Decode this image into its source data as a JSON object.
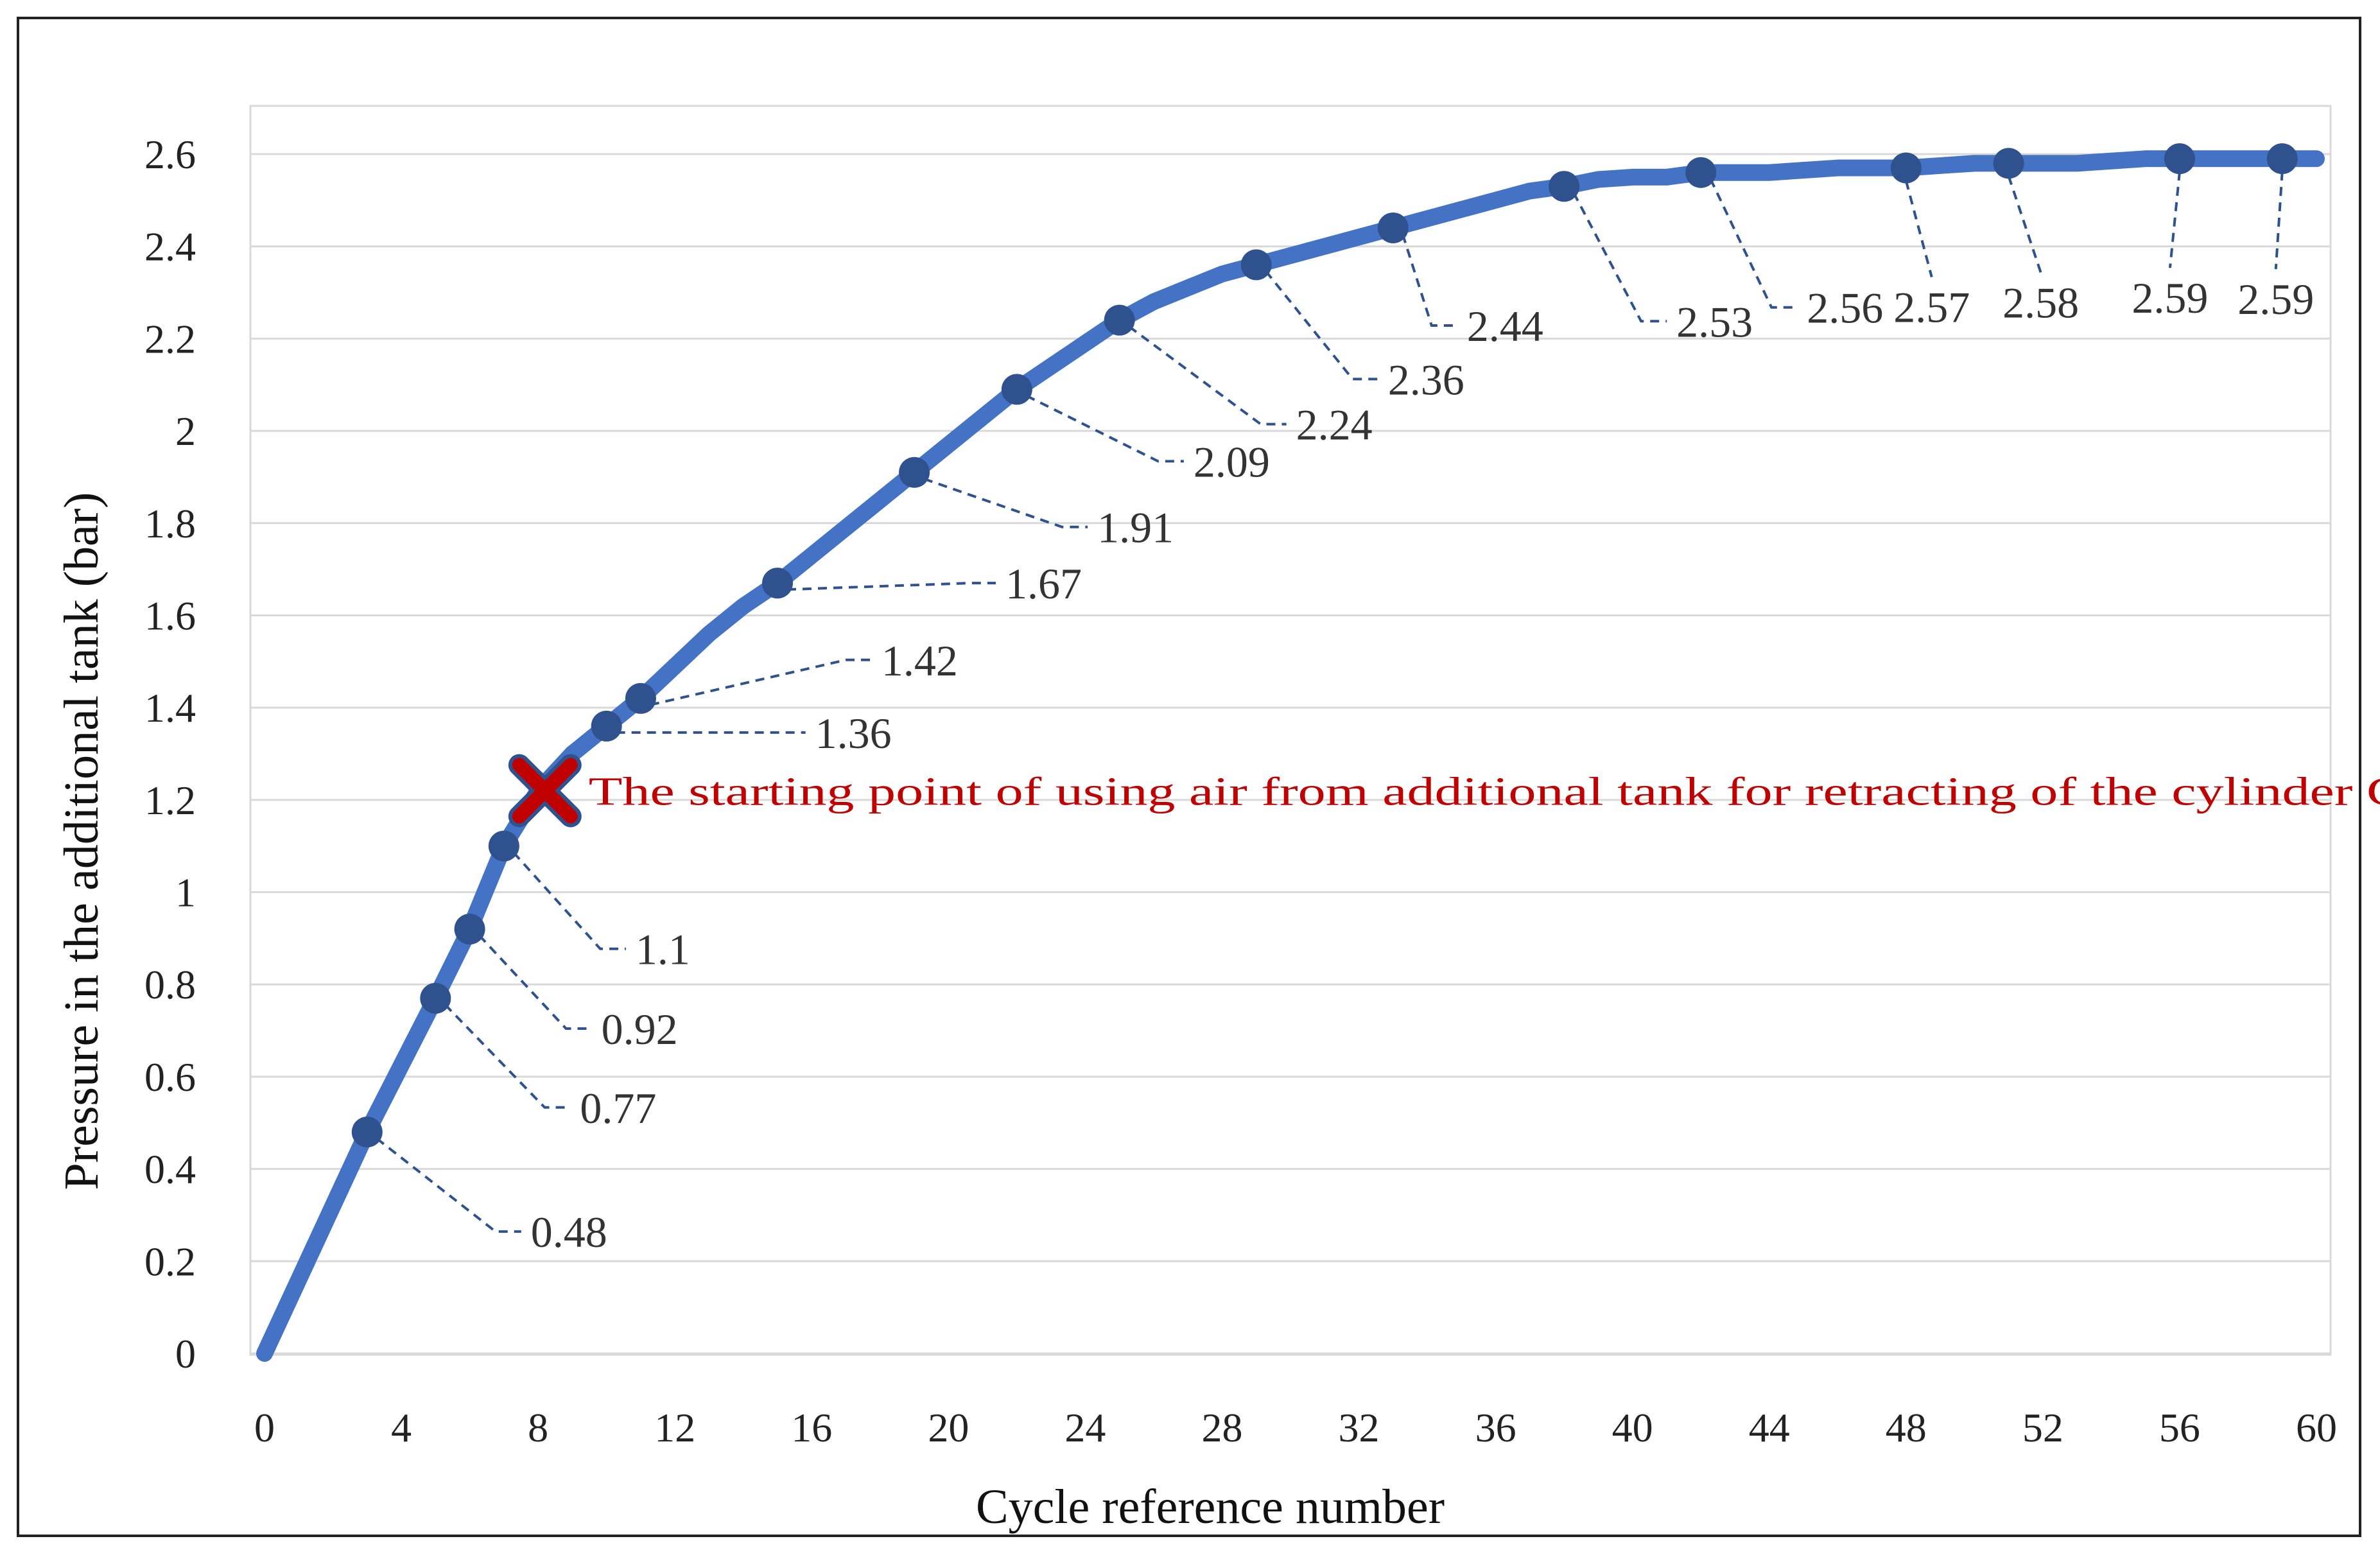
{
  "chart_data": {
    "type": "line",
    "title": "",
    "xlabel": "Cycle reference number",
    "ylabel": "Pressure in the additional tank (bar)",
    "xlim": [
      0,
      60
    ],
    "ylim": [
      0,
      2.6
    ],
    "grid": "horizontal",
    "x_ticks": [
      "0",
      "4",
      "8",
      "12",
      "16",
      "20",
      "24",
      "28",
      "32",
      "36",
      "40",
      "44",
      "48",
      "52",
      "56",
      "60"
    ],
    "y_ticks": [
      "0",
      "0.2",
      "0.4",
      "0.6",
      "0.8",
      "1",
      "1.2",
      "1.4",
      "1.6",
      "1.8",
      "2",
      "2.2",
      "2.4",
      "2.6"
    ],
    "line_color": "#4472c4",
    "marker_color": "#2f528f",
    "series": [
      {
        "name": "Pressure",
        "x": [
          0,
          3,
          5,
          6,
          7,
          8,
          9,
          10,
          11,
          12,
          13,
          14,
          15,
          16,
          17,
          18,
          19,
          20,
          21,
          22,
          23,
          24,
          25,
          26,
          27,
          28,
          29,
          30,
          31,
          32,
          33,
          34,
          35,
          36,
          37,
          38,
          39,
          40,
          41,
          42,
          43,
          44,
          45,
          46,
          47,
          48,
          49,
          50,
          51,
          52,
          53,
          54,
          55,
          56,
          57,
          58,
          59,
          60
        ],
        "y": [
          0,
          0.48,
          0.77,
          0.92,
          1.1,
          1.22,
          1.3,
          1.36,
          1.42,
          1.49,
          1.56,
          1.62,
          1.67,
          1.73,
          1.79,
          1.85,
          1.91,
          1.97,
          2.03,
          2.09,
          2.14,
          2.19,
          2.24,
          2.28,
          2.31,
          2.34,
          2.36,
          2.38,
          2.4,
          2.42,
          2.44,
          2.46,
          2.48,
          2.5,
          2.52,
          2.53,
          2.545,
          2.55,
          2.55,
          2.56,
          2.56,
          2.56,
          2.565,
          2.57,
          2.57,
          2.57,
          2.575,
          2.58,
          2.58,
          2.58,
          2.58,
          2.585,
          2.59,
          2.59,
          2.59,
          2.59,
          2.59,
          2.59
        ]
      }
    ],
    "labeled_points": [
      {
        "x": 3,
        "y": 0.48,
        "label": "0.48"
      },
      {
        "x": 5,
        "y": 0.77,
        "label": "0.77"
      },
      {
        "x": 6,
        "y": 0.92,
        "label": "0.92"
      },
      {
        "x": 7,
        "y": 1.1,
        "label": "1.1"
      },
      {
        "x": 10,
        "y": 1.36,
        "label": "1.36"
      },
      {
        "x": 11,
        "y": 1.42,
        "label": "1.42"
      },
      {
        "x": 15,
        "y": 1.67,
        "label": "1.67"
      },
      {
        "x": 19,
        "y": 1.91,
        "label": "1.91"
      },
      {
        "x": 22,
        "y": 2.09,
        "label": "2.09"
      },
      {
        "x": 25,
        "y": 2.24,
        "label": "2.24"
      },
      {
        "x": 29,
        "y": 2.36,
        "label": "2.36"
      },
      {
        "x": 33,
        "y": 2.44,
        "label": "2.44"
      },
      {
        "x": 38,
        "y": 2.53,
        "label": "2.53"
      },
      {
        "x": 42,
        "y": 2.56,
        "label": "2.56"
      },
      {
        "x": 48,
        "y": 2.57,
        "label": "2.57"
      },
      {
        "x": 51,
        "y": 2.58,
        "label": "2.58"
      },
      {
        "x": 56,
        "y": 2.59,
        "label": "2.59"
      },
      {
        "x": 59,
        "y": 2.59,
        "label": "2.59"
      }
    ],
    "annotation": {
      "x": 8.2,
      "y": 1.22,
      "marker": "x",
      "color": "#c00000",
      "text": "The starting point of using air from additional tank for retracting of the cylinder C piston rod"
    }
  }
}
